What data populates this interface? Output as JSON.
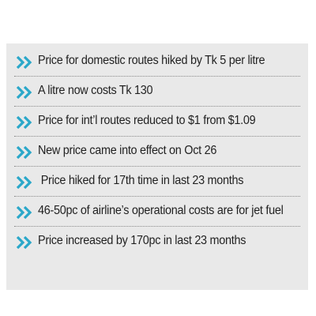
{
  "colors": {
    "panel_background": "#e9e9e9",
    "bullet": "#2aa7c9",
    "text": "#222222",
    "divider": "#8a8a8a"
  },
  "bullet_icon": "double-chevron-right-icon",
  "items": [
    {
      "text": "Price for domestic routes hiked by Tk 5 per litre"
    },
    {
      "text": "A litre now costs Tk 130"
    },
    {
      "text": "Price for int’l routes reduced to $1 from $1.09"
    },
    {
      "text": "New price came into effect on Oct 26"
    },
    {
      "text": " Price hiked for 17th time in last 23 months"
    },
    {
      "text": "46-50pc of airline’s operational costs are for jet fuel"
    },
    {
      "text": "Price increased by 170pc in last 23 months"
    }
  ]
}
